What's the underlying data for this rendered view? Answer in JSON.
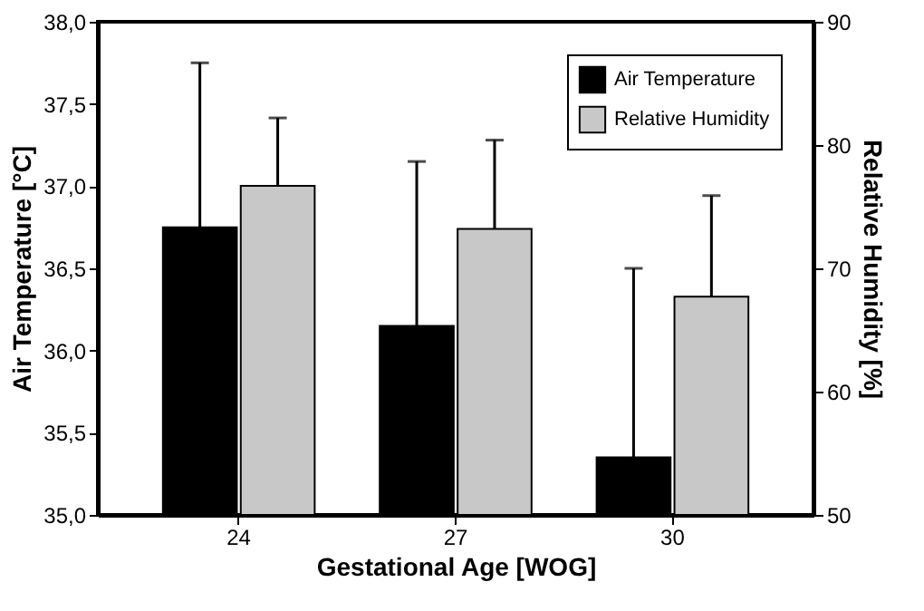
{
  "chart_data": {
    "type": "bar",
    "xlabel": "Gestational Age [WOG]",
    "ylabel": "Air Temperature [°C]",
    "y2label": "Relative Humidity [%]",
    "categories": [
      "24",
      "27",
      "30"
    ],
    "series": [
      {
        "name": "Air Temperature",
        "color": "#000000",
        "values": [
          36.75,
          36.15,
          35.35
        ],
        "errors": [
          [
            36.75,
            37.75
          ],
          [
            36.15,
            37.15
          ],
          [
            35.35,
            36.5
          ]
        ]
      },
      {
        "name": "Relative Humidity",
        "color": "#c8c8c8",
        "axis": "y2",
        "values": [
          76.7,
          73.2,
          67.7
        ],
        "errors": [
          [
            76.7,
            82.2
          ],
          [
            73.2,
            80.4
          ],
          [
            67.7,
            75.9
          ]
        ]
      }
    ],
    "ylim": [
      35,
      38
    ],
    "yticks": [
      {
        "value": 35,
        "label": "35,0"
      },
      {
        "value": 35.5,
        "label": "35,5"
      },
      {
        "value": 36,
        "label": "36,0"
      },
      {
        "value": 36.5,
        "label": "36,5"
      },
      {
        "value": 37,
        "label": "37,0"
      },
      {
        "value": 37.5,
        "label": "37,5"
      },
      {
        "value": 38,
        "label": "38,0"
      }
    ],
    "y2lim": [
      50,
      90
    ],
    "y2ticks": [
      50,
      60,
      70,
      80,
      90
    ],
    "legend": "top right",
    "grid": false
  }
}
